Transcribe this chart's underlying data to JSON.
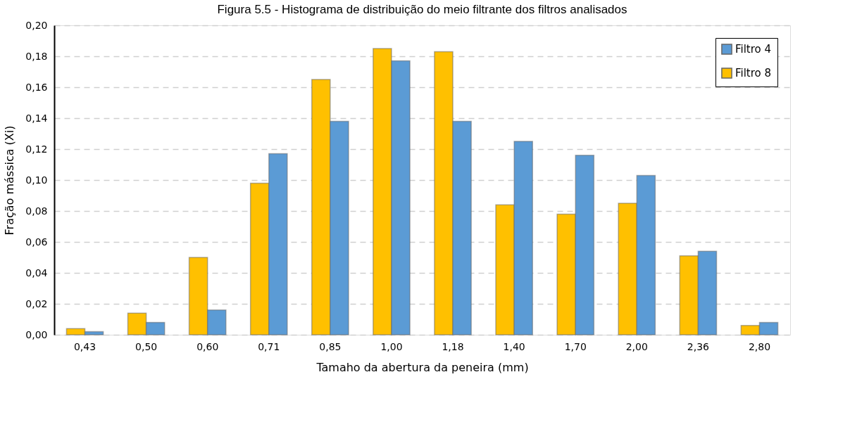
{
  "chart_data": {
    "type": "bar",
    "title": "Figura 5.5 - Histograma de distribuição do meio filtrante dos filtros analisados",
    "xlabel": "Tamaho da abertura da peneira (mm)",
    "ylabel": "Fração mássica (Xi)",
    "categories": [
      "0,43",
      "0,50",
      "0,60",
      "0,71",
      "0,85",
      "1,00",
      "1,18",
      "1,40",
      "1,70",
      "2,00",
      "2,36",
      "2,80"
    ],
    "series": [
      {
        "name": "Filtro 8",
        "color": "#ffc000",
        "values": [
          0.004,
          0.014,
          0.05,
          0.098,
          0.165,
          0.185,
          0.183,
          0.084,
          0.078,
          0.085,
          0.051,
          0.006
        ]
      },
      {
        "name": "Filtro 4",
        "color": "#5b9bd5",
        "values": [
          0.002,
          0.008,
          0.016,
          0.117,
          0.138,
          0.177,
          0.138,
          0.125,
          0.116,
          0.103,
          0.054,
          0.008
        ]
      }
    ],
    "ylim": [
      0,
      0.2
    ],
    "yticks": [
      {
        "value": 0,
        "label": "0,00"
      },
      {
        "value": 0.02,
        "label": "0,02"
      },
      {
        "value": 0.04,
        "label": "0,04"
      },
      {
        "value": 0.06,
        "label": "0,06"
      },
      {
        "value": 0.08,
        "label": "0,08"
      },
      {
        "value": 0.1,
        "label": "0,10"
      },
      {
        "value": 0.12,
        "label": "0,12"
      },
      {
        "value": 0.14,
        "label": "0,14"
      },
      {
        "value": 0.16,
        "label": "0,16"
      },
      {
        "value": 0.18,
        "label": "0,18"
      },
      {
        "value": 0.2,
        "label": "0,20"
      }
    ],
    "grid": "y",
    "legend": "top right"
  }
}
